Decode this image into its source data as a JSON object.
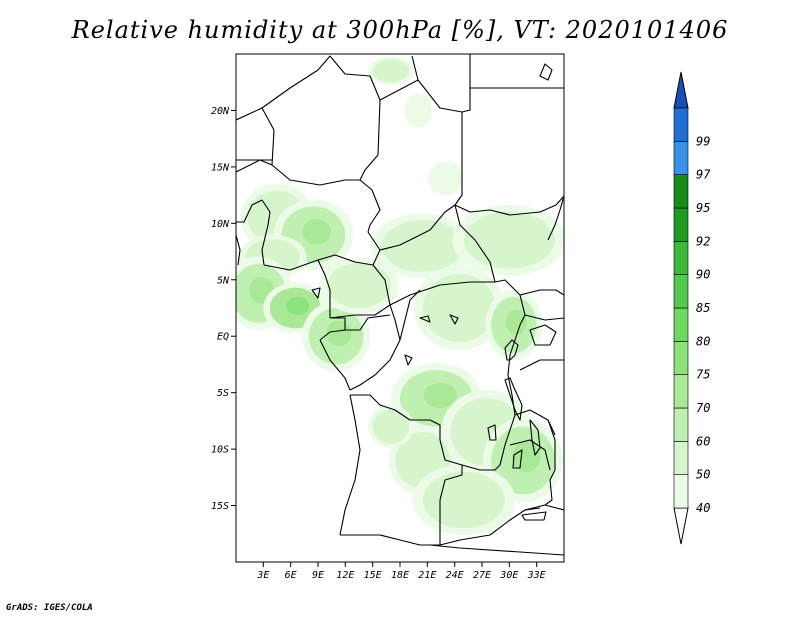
{
  "title": "Relative humidity at 300hPa [%], VT: 2020101406",
  "credit": "GrADS: IGES/COLA",
  "map": {
    "lon_range": [
      0,
      36
    ],
    "lat_range": [
      -20,
      25
    ],
    "lat_ticks": [
      {
        "value": 20,
        "label": "20N"
      },
      {
        "value": 15,
        "label": "15N"
      },
      {
        "value": 10,
        "label": "10N"
      },
      {
        "value": 5,
        "label": "5N"
      },
      {
        "value": 0,
        "label": "EQ"
      },
      {
        "value": -5,
        "label": "5S"
      },
      {
        "value": -10,
        "label": "10S"
      },
      {
        "value": -15,
        "label": "15S"
      }
    ],
    "lon_ticks": [
      {
        "value": 3,
        "label": "3E"
      },
      {
        "value": 6,
        "label": "6E"
      },
      {
        "value": 9,
        "label": "9E"
      },
      {
        "value": 12,
        "label": "12E"
      },
      {
        "value": 15,
        "label": "15E"
      },
      {
        "value": 18,
        "label": "18E"
      },
      {
        "value": 21,
        "label": "21E"
      },
      {
        "value": 24,
        "label": "24E"
      },
      {
        "value": 27,
        "label": "27E"
      },
      {
        "value": 30,
        "label": "30E"
      },
      {
        "value": 33,
        "label": "33E"
      }
    ]
  },
  "colorbar": {
    "levels": [
      {
        "label": "40",
        "color": "#ebfbe7"
      },
      {
        "label": "50",
        "color": "#d6f5cc"
      },
      {
        "label": "60",
        "color": "#bff0b2"
      },
      {
        "label": "70",
        "color": "#a8e897"
      },
      {
        "label": "75",
        "color": "#8ee27c"
      },
      {
        "label": "80",
        "color": "#6fd863"
      },
      {
        "label": "85",
        "color": "#55c84f"
      },
      {
        "label": "90",
        "color": "#3cb83a"
      },
      {
        "label": "92",
        "color": "#209c22"
      },
      {
        "label": "95",
        "color": "#168d18"
      },
      {
        "label": "97",
        "color": "#3a91e8"
      },
      {
        "label": "99",
        "color": "#1f6fd6"
      }
    ],
    "low_end_color": "#ffffff",
    "high_end_color": "#1650b8"
  },
  "humidity_patches": [
    {
      "lon": 4.5,
      "lat": 10.5,
      "rx": 3.2,
      "ry": 2.4,
      "level": 1
    },
    {
      "lon": 8.5,
      "lat": 9.0,
      "rx": 3.5,
      "ry": 2.5,
      "level": 2
    },
    {
      "lon": 4.0,
      "lat": 7.0,
      "rx": 3.0,
      "ry": 1.6,
      "level": 1
    },
    {
      "lon": 2.5,
      "lat": 3.8,
      "rx": 3.0,
      "ry": 2.6,
      "level": 2
    },
    {
      "lon": 6.5,
      "lat": 2.5,
      "rx": 2.8,
      "ry": 1.8,
      "level": 3
    },
    {
      "lon": 11.0,
      "lat": 0.0,
      "rx": 3.0,
      "ry": 2.5,
      "level": 2
    },
    {
      "lon": 13.5,
      "lat": 4.5,
      "rx": 3.5,
      "ry": 2.0,
      "level": 1
    },
    {
      "lon": 20.5,
      "lat": 8.0,
      "rx": 4.5,
      "ry": 2.3,
      "level": 1
    },
    {
      "lon": 30.0,
      "lat": 8.5,
      "rx": 5.0,
      "ry": 2.5,
      "level": 1
    },
    {
      "lon": 24.5,
      "lat": 2.5,
      "rx": 4.0,
      "ry": 3.0,
      "level": 1
    },
    {
      "lon": 30.5,
      "lat": 1.0,
      "rx": 2.5,
      "ry": 2.5,
      "level": 2
    },
    {
      "lon": 22.0,
      "lat": -5.5,
      "rx": 4.0,
      "ry": 2.5,
      "level": 2
    },
    {
      "lon": 27.5,
      "lat": -8.5,
      "rx": 4.0,
      "ry": 3.0,
      "level": 1
    },
    {
      "lon": 31.5,
      "lat": -11.0,
      "rx": 3.5,
      "ry": 3.0,
      "level": 2
    },
    {
      "lon": 20.5,
      "lat": -11.0,
      "rx": 3.0,
      "ry": 2.5,
      "level": 1
    },
    {
      "lon": 25.0,
      "lat": -14.5,
      "rx": 4.5,
      "ry": 2.5,
      "level": 1
    },
    {
      "lon": 17.0,
      "lat": -8.0,
      "rx": 2.0,
      "ry": 1.5,
      "level": 1
    },
    {
      "lon": 17.0,
      "lat": 23.5,
      "rx": 2.0,
      "ry": 1.0,
      "level": 1
    },
    {
      "lon": 20.0,
      "lat": 20.0,
      "rx": 1.2,
      "ry": 1.2,
      "level": 0
    },
    {
      "lon": 23.0,
      "lat": 14.0,
      "rx": 1.5,
      "ry": 1.2,
      "level": 0
    }
  ]
}
